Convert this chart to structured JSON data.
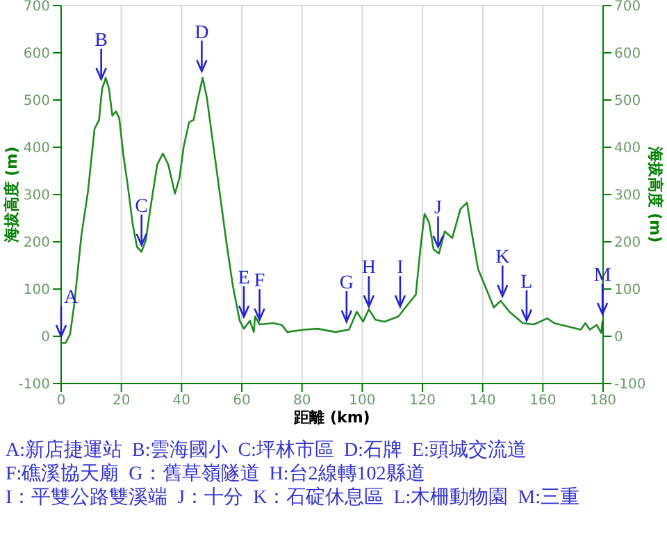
{
  "chart_data": {
    "type": "line",
    "xlabel": "距離 (km)",
    "ylabel": "海拔高度 (m)",
    "y2label": "海拔高度 (m)",
    "x": [
      0,
      1.5,
      3,
      4.4,
      6.7,
      8.9,
      11.1,
      12.6,
      13.6,
      14.8,
      15.9,
      17,
      18.2,
      19.3,
      20.7,
      22.2,
      23.7,
      25.2,
      26.7,
      28.1,
      29.6,
      31.9,
      33.8,
      35.6,
      37.8,
      39.3,
      40.7,
      42.5,
      44,
      45.5,
      47,
      48.4,
      50.4,
      52.6,
      54.8,
      57,
      59.3,
      60.7,
      62.7,
      64,
      64.4,
      65.9,
      70.4,
      73.3,
      75.1,
      80.7,
      85.2,
      91.1,
      95.6,
      98.2,
      100.3,
      102.2,
      104.4,
      107.4,
      112,
      115.6,
      117.8,
      119.3,
      120.7,
      122.2,
      123.7,
      125.5,
      127.4,
      129.9,
      132.6,
      134.8,
      136.3,
      138.5,
      140.7,
      143.7,
      146,
      148.9,
      153.3,
      157,
      161.5,
      163.7,
      172.6,
      174.1,
      175.6,
      177.9,
      179.4,
      179.8
    ],
    "series": [
      {
        "color": "#228b22",
        "values": [
          -14,
          -14,
          5,
          70,
          212,
          306,
          439,
          458,
          524,
          547,
          524,
          467,
          476,
          462,
          382,
          316,
          240,
          189,
          179,
          203,
          269,
          363,
          387,
          363,
          302,
          335,
          401,
          453,
          458,
          505,
          547,
          505,
          410,
          307,
          203,
          108,
          33,
          16,
          33,
          9,
          42,
          25,
          28,
          24,
          9,
          14,
          16,
          9,
          14,
          52,
          31,
          57,
          35,
          31,
          42,
          71,
          88,
          184,
          259,
          241,
          184,
          175,
          222,
          208,
          269,
          283,
          222,
          142,
          108,
          61,
          75,
          52,
          28,
          25,
          38,
          28,
          14,
          28,
          14,
          24,
          7,
          33
        ]
      }
    ],
    "xlim": [
      0,
      180
    ],
    "xticks": [
      0,
      20,
      40,
      60,
      80,
      100,
      120,
      140,
      160,
      180
    ],
    "ylim": [
      -100,
      700
    ],
    "yticks": [
      -100,
      0,
      100,
      200,
      300,
      400,
      500,
      600,
      700
    ],
    "y2lim": [
      -100,
      700
    ],
    "y2ticks": [
      -100,
      0,
      100,
      200,
      300,
      400,
      500,
      600,
      700
    ],
    "grid": true,
    "marker": "none",
    "line_style": "solid",
    "annotations": [
      {
        "text": "A",
        "x": 0,
        "y": 0
      },
      {
        "text": "B",
        "x": 13.3,
        "y": 544
      },
      {
        "text": "C",
        "x": 26.7,
        "y": 193
      },
      {
        "text": "D",
        "x": 46.7,
        "y": 561
      },
      {
        "text": "E",
        "x": 60.7,
        "y": 41
      },
      {
        "text": "F",
        "x": 65.9,
        "y": 35
      },
      {
        "text": "G",
        "x": 94.8,
        "y": 31
      },
      {
        "text": "H",
        "x": 102.2,
        "y": 63
      },
      {
        "text": "I",
        "x": 112.6,
        "y": 63
      },
      {
        "text": "J",
        "x": 125.2,
        "y": 189
      },
      {
        "text": "K",
        "x": 146.6,
        "y": 85
      },
      {
        "text": "L",
        "x": 154.6,
        "y": 33
      },
      {
        "text": "M",
        "x": 179.8,
        "y": 47
      },
      "A:新店捷運站  B:雲海國小  C:坪林市區  D:石牌  E:頭城交流道",
      "F:礁溪協天廟  G：舊草嶺隧道  H:台2線轉102縣道",
      "I：平雙公路雙溪端  J：十分  K：石碇休息區  L:木柵動物園  M:三重"
    ]
  }
}
